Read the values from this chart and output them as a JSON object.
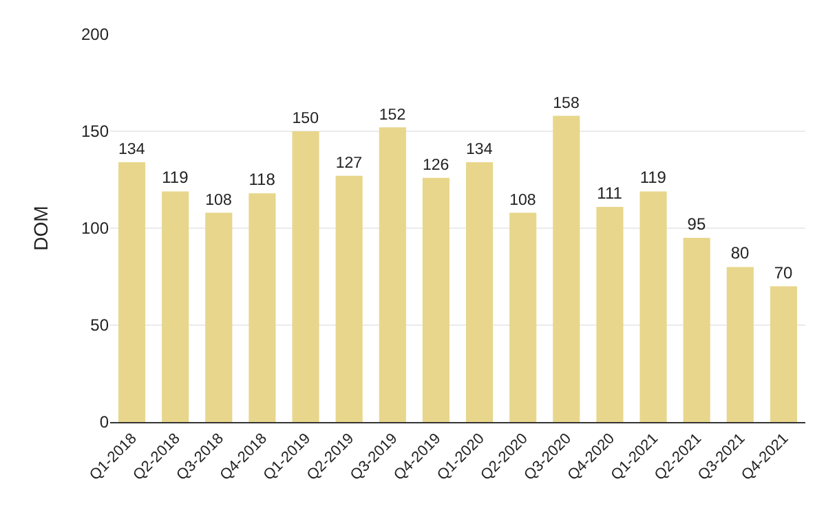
{
  "chart_data": {
    "type": "bar",
    "ylabel": "DOM",
    "categories": [
      "Q1-2018",
      "Q2-2018",
      "Q3-2018",
      "Q4-2018",
      "Q1-2019",
      "Q2-2019",
      "Q3-2019",
      "Q4-2019",
      "Q1-2020",
      "Q2-2020",
      "Q3-2020",
      "Q4-2020",
      "Q1-2021",
      "Q2-2021",
      "Q3-2021",
      "Q4-2021"
    ],
    "values": [
      134,
      119,
      108,
      118,
      150,
      127,
      152,
      126,
      134,
      108,
      158,
      111,
      119,
      95,
      80,
      70
    ],
    "color": "#e8d68c",
    "ylim": [
      0,
      200
    ],
    "yticks": [
      0,
      50,
      100,
      150,
      200
    ],
    "grid": "y",
    "data_labels": true
  }
}
